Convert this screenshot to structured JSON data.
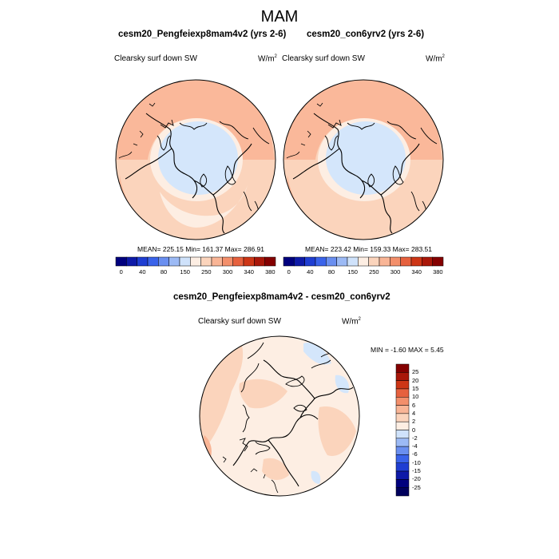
{
  "title": "MAM",
  "panels": [
    {
      "title": "cesm20_Pengfeiexp8mam4v2 (yrs 2-6)",
      "variable": "Clearsky surf down SW",
      "units_base": "W/m",
      "units_exp": "2",
      "stats": "MEAN= 225.15  Min= 161.37  Max= 286.91"
    },
    {
      "title": "cesm20_con6yrv2 (yrs 2-6)",
      "variable": "Clearsky surf down SW",
      "units_base": "W/m",
      "units_exp": "2",
      "stats": "MEAN= 223.42  Min= 159.33  Max= 283.51"
    }
  ],
  "diff_panel": {
    "title": "cesm20_Pengfeiexp8mam4v2 - cesm20_con6yrv2",
    "variable": "Clearsky surf down SW",
    "units_base": "W/m",
    "units_exp": "2",
    "stats": "MIN =  -1.60 MAX =   5.45"
  },
  "chart_data": [
    {
      "type": "heatmap",
      "projection": "north-polar-stereographic",
      "title": "cesm20_Pengfeiexp8mam4v2 (yrs 2-6)",
      "colorbar": {
        "orientation": "horizontal",
        "labels": [
          "0",
          "40",
          "80",
          "150",
          "250",
          "300",
          "340",
          "380"
        ],
        "levels": [
          0,
          20,
          40,
          60,
          80,
          100,
          150,
          200,
          250,
          275,
          300,
          320,
          340,
          360,
          380
        ],
        "colors": [
          "#00007e",
          "#0e1aa8",
          "#1f3ed2",
          "#3a63ea",
          "#6a8ff0",
          "#9cbaf5",
          "#cfe2fb",
          "#fdeee3",
          "#fbd4bc",
          "#f9b596",
          "#f38f6b",
          "#e6613e",
          "#cd3616",
          "#a91709",
          "#840000"
        ]
      },
      "mean": 225.15,
      "min": 161.37,
      "max": 286.91
    },
    {
      "type": "heatmap",
      "projection": "north-polar-stereographic",
      "title": "cesm20_con6yrv2 (yrs 2-6)",
      "colorbar": {
        "orientation": "horizontal",
        "labels": [
          "0",
          "40",
          "80",
          "150",
          "250",
          "300",
          "340",
          "380"
        ],
        "levels": [
          0,
          20,
          40,
          60,
          80,
          100,
          150,
          200,
          250,
          275,
          300,
          320,
          340,
          360,
          380
        ],
        "colors": [
          "#00007e",
          "#0e1aa8",
          "#1f3ed2",
          "#3a63ea",
          "#6a8ff0",
          "#9cbaf5",
          "#cfe2fb",
          "#fdeee3",
          "#fbd4bc",
          "#f9b596",
          "#f38f6b",
          "#e6613e",
          "#cd3616",
          "#a91709",
          "#840000"
        ]
      },
      "mean": 223.42,
      "min": 159.33,
      "max": 283.51
    },
    {
      "type": "heatmap",
      "projection": "north-polar-stereographic",
      "title": "cesm20_Pengfeiexp8mam4v2 - cesm20_con6yrv2",
      "colorbar": {
        "orientation": "vertical",
        "labels": [
          "25",
          "20",
          "15",
          "10",
          "6",
          "4",
          "2",
          "0",
          "-2",
          "-4",
          "-6",
          "-10",
          "-15",
          "-20",
          "-25"
        ],
        "colors": [
          "#840000",
          "#a91709",
          "#cd3616",
          "#e6613e",
          "#f38f6b",
          "#f9b596",
          "#fbd4bc",
          "#fdeee3",
          "#cfe2fb",
          "#9cbaf5",
          "#6a8ff0",
          "#3a63ea",
          "#1f3ed2",
          "#0e1aa8",
          "#00007e",
          "#00005c"
        ]
      },
      "min": -1.6,
      "max": 5.45
    }
  ]
}
